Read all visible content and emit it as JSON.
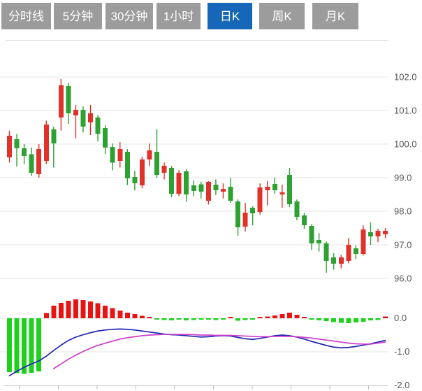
{
  "tab_bar": {
    "items": [
      {
        "id": "time-line",
        "label": "分时线",
        "active": false
      },
      {
        "id": "5min",
        "label": "5分钟",
        "active": false
      },
      {
        "id": "30min",
        "label": "30分钟",
        "active": false
      },
      {
        "id": "1hour",
        "label": "1小时",
        "active": false
      },
      {
        "id": "daily-k",
        "label": "日K",
        "active": true
      },
      {
        "id": "weekly-k",
        "label": "周K",
        "active": false
      },
      {
        "id": "monthly-k",
        "label": "月K",
        "active": false
      }
    ],
    "active_bg": "#1667b8",
    "inactive_bg": "#9c9c9c",
    "text_color": "#ffffff"
  },
  "colors": {
    "grid": "#e4e4e4",
    "axis_line": "#c9c9c9",
    "axis_tick": "#b9b9b9",
    "axis_label": "#555555",
    "divider": "#d9d9d9"
  },
  "chart_data": {
    "type": "candlestick+macd",
    "grid": true,
    "price_panel": {
      "up_color": "#e0322a",
      "down_color": "#2fa133",
      "y_ticks": [
        {
          "label": "102.0",
          "value": 102.0
        },
        {
          "label": "101.0",
          "value": 101.0
        },
        {
          "label": "100.0",
          "value": 100.0
        },
        {
          "label": "99.0",
          "value": 99.0
        },
        {
          "label": "98.0",
          "value": 98.0
        },
        {
          "label": "97.0",
          "value": 97.0
        },
        {
          "label": "96.0",
          "value": 96.0
        }
      ],
      "ohlc_note": "each candle = [open, high, low, close]; close>=open renders red (up), else green (down)",
      "candles": [
        [
          99.6,
          100.4,
          99.45,
          100.25
        ],
        [
          100.15,
          100.3,
          99.33,
          99.88
        ],
        [
          99.88,
          100.0,
          99.4,
          99.65
        ],
        [
          99.7,
          99.9,
          99.05,
          99.15
        ],
        [
          99.1,
          100.0,
          99.0,
          99.85
        ],
        [
          99.5,
          100.7,
          99.4,
          100.58
        ],
        [
          100.44,
          100.52,
          99.3,
          100.02
        ],
        [
          100.79,
          101.94,
          100.4,
          101.75
        ],
        [
          101.73,
          101.82,
          100.6,
          100.92
        ],
        [
          100.85,
          101.17,
          100.17,
          101.02
        ],
        [
          101.02,
          101.12,
          100.35,
          100.52
        ],
        [
          100.65,
          101.17,
          100.27,
          100.92
        ],
        [
          100.79,
          100.86,
          100.08,
          100.3
        ],
        [
          100.48,
          100.56,
          99.7,
          99.9
        ],
        [
          99.92,
          100.02,
          99.22,
          99.45
        ],
        [
          99.5,
          100.06,
          99.3,
          99.85
        ],
        [
          99.77,
          99.85,
          98.78,
          98.98
        ],
        [
          99.02,
          99.2,
          98.62,
          98.83
        ],
        [
          98.77,
          99.62,
          98.68,
          99.54
        ],
        [
          99.54,
          100.02,
          99.35,
          99.81
        ],
        [
          99.77,
          100.44,
          99.0,
          99.08
        ],
        [
          99.15,
          99.45,
          98.95,
          99.35
        ],
        [
          99.29,
          99.35,
          98.42,
          98.52
        ],
        [
          98.52,
          99.22,
          98.45,
          99.15
        ],
        [
          99.19,
          99.25,
          98.28,
          98.5
        ],
        [
          98.77,
          98.92,
          98.45,
          98.6
        ],
        [
          98.8,
          98.88,
          98.38,
          98.58
        ],
        [
          98.31,
          98.9,
          98.2,
          98.87
        ],
        [
          98.79,
          98.95,
          98.48,
          98.62
        ],
        [
          98.58,
          98.83,
          98.38,
          98.67
        ],
        [
          98.73,
          99.0,
          98.25,
          98.31
        ],
        [
          98.29,
          98.35,
          97.27,
          97.52
        ],
        [
          97.54,
          98.25,
          97.4,
          97.96
        ],
        [
          98.1,
          98.15,
          97.58,
          97.94
        ],
        [
          97.98,
          98.83,
          97.9,
          98.71
        ],
        [
          98.63,
          98.9,
          98.17,
          98.73
        ],
        [
          98.81,
          99.0,
          98.52,
          98.63
        ],
        [
          98.5,
          98.79,
          98.1,
          98.56
        ],
        [
          99.08,
          99.29,
          98.12,
          98.21
        ],
        [
          98.29,
          98.35,
          97.73,
          97.83
        ],
        [
          97.88,
          97.95,
          97.48,
          97.58
        ],
        [
          97.56,
          97.62,
          96.85,
          97.04
        ],
        [
          97.15,
          97.35,
          96.8,
          97.04
        ],
        [
          97.04,
          97.1,
          96.17,
          96.52
        ],
        [
          96.63,
          96.75,
          96.26,
          96.44
        ],
        [
          96.44,
          96.7,
          96.3,
          96.63
        ],
        [
          96.52,
          97.2,
          96.45,
          97.0
        ],
        [
          96.9,
          96.98,
          96.58,
          96.73
        ],
        [
          96.73,
          97.58,
          96.68,
          97.46
        ],
        [
          97.38,
          97.67,
          97.0,
          97.25
        ],
        [
          97.25,
          97.48,
          97.08,
          97.42
        ],
        [
          97.31,
          97.5,
          97.2,
          97.42
        ]
      ]
    },
    "macd_panel": {
      "hist_up_color": "#e81414",
      "hist_down_color": "#1fd01f",
      "dif_color": "#2026b0",
      "dea_color": "#cb3ecb",
      "y_ticks": [
        {
          "label": "0.0",
          "value": 0.0
        },
        {
          "label": "-1.0",
          "value": -1.0
        },
        {
          "label": "-2.0",
          "value": -2.0
        }
      ],
      "histogram": [
        -1.6,
        -1.64,
        -1.66,
        -1.63,
        -1.58,
        0.16,
        0.37,
        0.46,
        0.52,
        0.56,
        0.54,
        0.5,
        0.45,
        0.38,
        0.3,
        0.23,
        0.17,
        0.12,
        0.07,
        0.04,
        -0.04,
        -0.05,
        -0.06,
        -0.04,
        -0.06,
        -0.05,
        -0.04,
        -0.04,
        -0.05,
        -0.04,
        0.03,
        -0.07,
        -0.05,
        -0.04,
        0.03,
        0.05,
        0.08,
        0.12,
        0.17,
        0.1,
        0.04,
        -0.04,
        -0.06,
        -0.08,
        -0.11,
        -0.14,
        -0.15,
        -0.12,
        -0.1,
        -0.06,
        -0.05,
        0.05
      ],
      "dif": [
        -1.71,
        -1.58,
        -1.46,
        -1.36,
        -1.27,
        -1.13,
        -0.96,
        -0.8,
        -0.66,
        -0.56,
        -0.49,
        -0.43,
        -0.38,
        -0.35,
        -0.33,
        -0.32,
        -0.33,
        -0.35,
        -0.38,
        -0.41,
        -0.44,
        -0.47,
        -0.49,
        -0.5,
        -0.52,
        -0.54,
        -0.56,
        -0.55,
        -0.53,
        -0.52,
        -0.53,
        -0.57,
        -0.61,
        -0.63,
        -0.6,
        -0.56,
        -0.52,
        -0.5,
        -0.52,
        -0.56,
        -0.62,
        -0.69,
        -0.75,
        -0.81,
        -0.86,
        -0.88,
        -0.87,
        -0.84,
        -0.8,
        -0.76,
        -0.71,
        -0.66
      ],
      "dea": [
        null,
        null,
        null,
        null,
        null,
        null,
        -1.5,
        -1.36,
        -1.22,
        -1.1,
        -0.99,
        -0.89,
        -0.81,
        -0.74,
        -0.68,
        -0.62,
        -0.58,
        -0.55,
        -0.52,
        -0.5,
        -0.49,
        -0.48,
        -0.48,
        -0.48,
        -0.48,
        -0.49,
        -0.5,
        -0.5,
        -0.51,
        -0.51,
        -0.51,
        -0.52,
        -0.53,
        -0.54,
        -0.55,
        -0.55,
        -0.54,
        -0.54,
        -0.54,
        -0.55,
        -0.57,
        -0.59,
        -0.62,
        -0.65,
        -0.68,
        -0.71,
        -0.74,
        -0.76,
        -0.77,
        -0.77,
        -0.74,
        -0.71
      ]
    }
  }
}
